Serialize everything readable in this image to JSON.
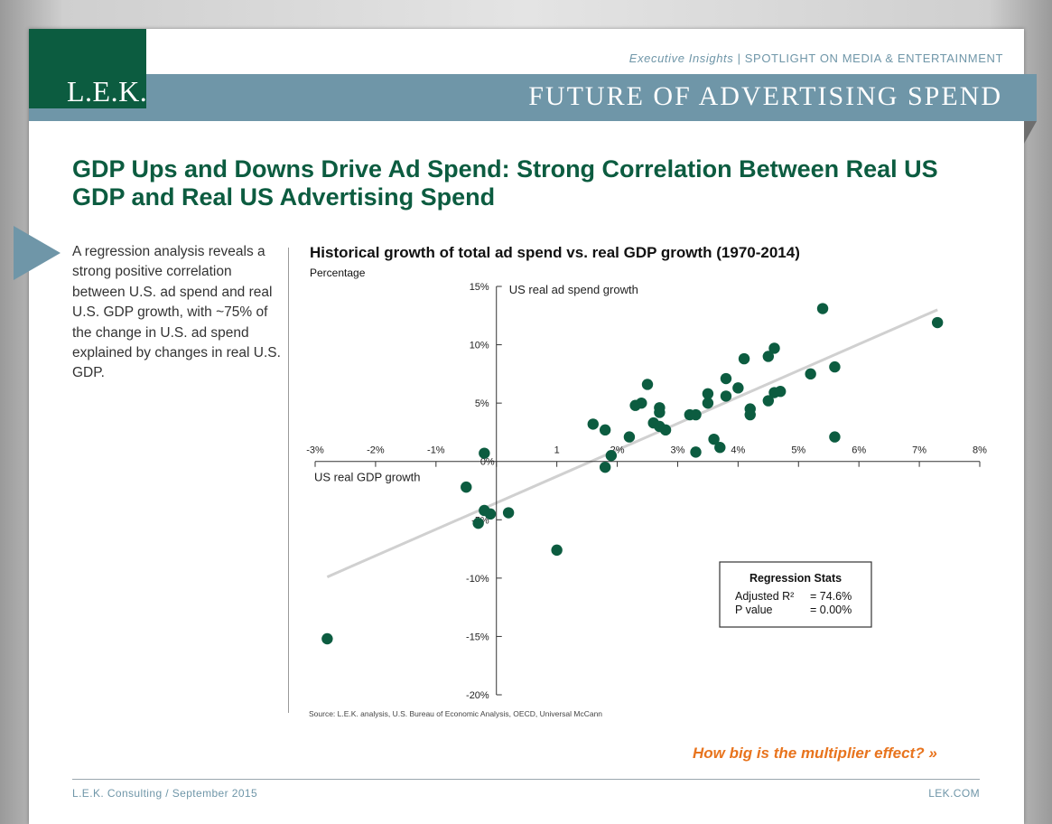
{
  "header": {
    "logo_text": "L.E.K.",
    "tagline_italic": "Executive Insights",
    "tagline_rest": " | SPOTLIGHT ON MEDIA & ENTERTAINMENT",
    "band_title": "FUTURE OF ADVERTISING SPEND"
  },
  "main_title": "GDP Ups and Downs Drive Ad Spend: Strong Correlation Between Real US GDP and Real US Advertising Spend",
  "intro_text": "A regression analysis reveals a strong positive correlation between U.S. ad spend and real U.S. GDP growth, with ~75% of the change in U.S. ad spend explained by changes in real U.S. GDP.",
  "colors": {
    "brand_green": "#0c5c40",
    "steel_blue": "#6f96a8",
    "accent_orange": "#e8741e",
    "trend_line": "#d0d0d0"
  },
  "chart_data": {
    "type": "scatter",
    "title": "Historical growth of total ad spend vs. real GDP growth (1970-2014)",
    "subtitle": "Percentage",
    "xlabel": "US real GDP growth",
    "ylabel": "US real ad spend growth",
    "xlim": [
      -3,
      8
    ],
    "ylim": [
      -20,
      15
    ],
    "x_ticks": [
      -3,
      -2,
      -1,
      0,
      1,
      2,
      3,
      4,
      5,
      6,
      7,
      8
    ],
    "x_tick_labels": [
      "-3%",
      "-2%",
      "-1%",
      "0%",
      "1",
      "2%",
      "3%",
      "4%",
      "5%",
      "6%",
      "7%",
      "8%"
    ],
    "y_ticks": [
      15,
      10,
      5,
      0,
      -5,
      -10,
      -15,
      -20
    ],
    "y_tick_labels": [
      "15%",
      "10%",
      "5%",
      "0%",
      "-5%",
      "-10%",
      "-15%",
      "-20%"
    ],
    "grid": false,
    "points": [
      {
        "x": -2.8,
        "y": -15.2
      },
      {
        "x": -0.5,
        "y": -2.2
      },
      {
        "x": -0.3,
        "y": -5.3
      },
      {
        "x": -0.2,
        "y": -4.2
      },
      {
        "x": -0.1,
        "y": -4.5
      },
      {
        "x": 0.2,
        "y": -4.4
      },
      {
        "x": -0.2,
        "y": 0.7
      },
      {
        "x": 1.0,
        "y": -7.6
      },
      {
        "x": 1.6,
        "y": 3.2
      },
      {
        "x": 1.8,
        "y": 2.7
      },
      {
        "x": 1.8,
        "y": -0.5
      },
      {
        "x": 1.9,
        "y": 0.5
      },
      {
        "x": 2.2,
        "y": 2.1
      },
      {
        "x": 2.3,
        "y": 4.8
      },
      {
        "x": 2.4,
        "y": 5.0
      },
      {
        "x": 2.5,
        "y": 6.6
      },
      {
        "x": 2.6,
        "y": 3.3
      },
      {
        "x": 2.7,
        "y": 4.6
      },
      {
        "x": 2.7,
        "y": 4.2
      },
      {
        "x": 2.7,
        "y": 3.0
      },
      {
        "x": 2.8,
        "y": 2.7
      },
      {
        "x": 3.2,
        "y": 4.0
      },
      {
        "x": 3.3,
        "y": 4.0
      },
      {
        "x": 3.3,
        "y": 0.8
      },
      {
        "x": 3.5,
        "y": 5.8
      },
      {
        "x": 3.5,
        "y": 5.0
      },
      {
        "x": 3.6,
        "y": 1.9
      },
      {
        "x": 3.7,
        "y": 1.2
      },
      {
        "x": 3.8,
        "y": 7.1
      },
      {
        "x": 3.8,
        "y": 5.6
      },
      {
        "x": 4.0,
        "y": 6.3
      },
      {
        "x": 4.1,
        "y": 8.8
      },
      {
        "x": 4.2,
        "y": 4.5
      },
      {
        "x": 4.2,
        "y": 4.0
      },
      {
        "x": 4.5,
        "y": 9.0
      },
      {
        "x": 4.5,
        "y": 5.2
      },
      {
        "x": 4.6,
        "y": 9.7
      },
      {
        "x": 4.6,
        "y": 5.9
      },
      {
        "x": 4.7,
        "y": 6.0
      },
      {
        "x": 5.2,
        "y": 7.5
      },
      {
        "x": 5.4,
        "y": 13.1
      },
      {
        "x": 5.6,
        "y": 8.1
      },
      {
        "x": 5.6,
        "y": 2.1
      },
      {
        "x": 7.3,
        "y": 11.9
      }
    ],
    "trend_line": {
      "x1": -2.8,
      "y1": -9.9,
      "x2": 7.3,
      "y2": 13.0
    },
    "regression_stats": {
      "title": "Regression Stats",
      "rows": [
        {
          "label": "Adjusted R²",
          "value": "= 74.6%"
        },
        {
          "label": "P value",
          "value": "= 0.00%"
        }
      ]
    },
    "source": "Source: L.E.K. analysis, U.S. Bureau of Economic Analysis, OECD, Universal McCann"
  },
  "cta_text": "How big is the multiplier effect? »",
  "footer": {
    "left": "L.E.K. Consulting / September 2015",
    "right": "LEK.COM"
  }
}
